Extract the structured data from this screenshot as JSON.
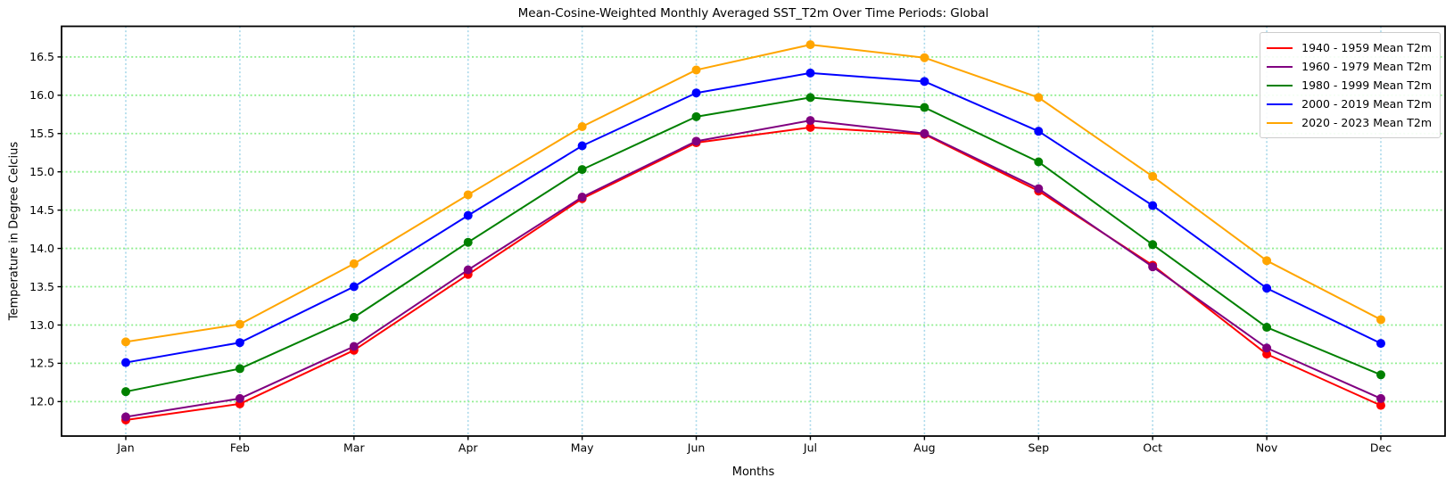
{
  "chart_data": {
    "type": "line",
    "title": "Mean-Cosine-Weighted Monthly Averaged SST_T2m Over Time Periods: Global",
    "xlabel": "Months",
    "ylabel": "Temperature in Degree Celcius",
    "categories": [
      "Jan",
      "Feb",
      "Mar",
      "Apr",
      "May",
      "Jun",
      "Jul",
      "Aug",
      "Sep",
      "Oct",
      "Nov",
      "Dec"
    ],
    "yticks": [
      "12.0",
      "12.5",
      "13.0",
      "13.5",
      "14.0",
      "14.5",
      "15.0",
      "15.5",
      "16.0",
      "16.5"
    ],
    "ylim": [
      11.55,
      16.9
    ],
    "grid": {
      "horizontal_color": "#90ee90",
      "vertical_color": "#a8d8ea",
      "style": "dotted"
    },
    "legend_position": "upper right",
    "marker": "circle",
    "series": [
      {
        "name": "1940 - 1959 Mean T2m",
        "color": "#ff0000",
        "values": [
          11.76,
          11.97,
          12.67,
          13.66,
          14.65,
          15.38,
          15.58,
          15.49,
          14.75,
          13.78,
          12.62,
          11.95
        ]
      },
      {
        "name": "1960 - 1979 Mean T2m",
        "color": "#800080",
        "values": [
          11.8,
          12.04,
          12.72,
          13.72,
          14.67,
          15.4,
          15.67,
          15.5,
          14.78,
          13.76,
          12.7,
          12.04
        ]
      },
      {
        "name": "1980 - 1999 Mean T2m",
        "color": "#008000",
        "values": [
          12.13,
          12.43,
          13.1,
          14.08,
          15.03,
          15.72,
          15.97,
          15.84,
          15.13,
          14.05,
          12.97,
          12.35
        ]
      },
      {
        "name": "2000 - 2019 Mean T2m",
        "color": "#0000ff",
        "values": [
          12.51,
          12.77,
          13.5,
          14.43,
          15.34,
          16.03,
          16.29,
          16.18,
          15.53,
          14.56,
          13.48,
          12.76
        ]
      },
      {
        "name": "2020 - 2023 Mean T2m",
        "color": "#ffa500",
        "values": [
          12.78,
          13.01,
          13.8,
          14.7,
          15.59,
          16.33,
          16.66,
          16.49,
          15.97,
          14.94,
          13.84,
          13.07
        ]
      }
    ]
  }
}
